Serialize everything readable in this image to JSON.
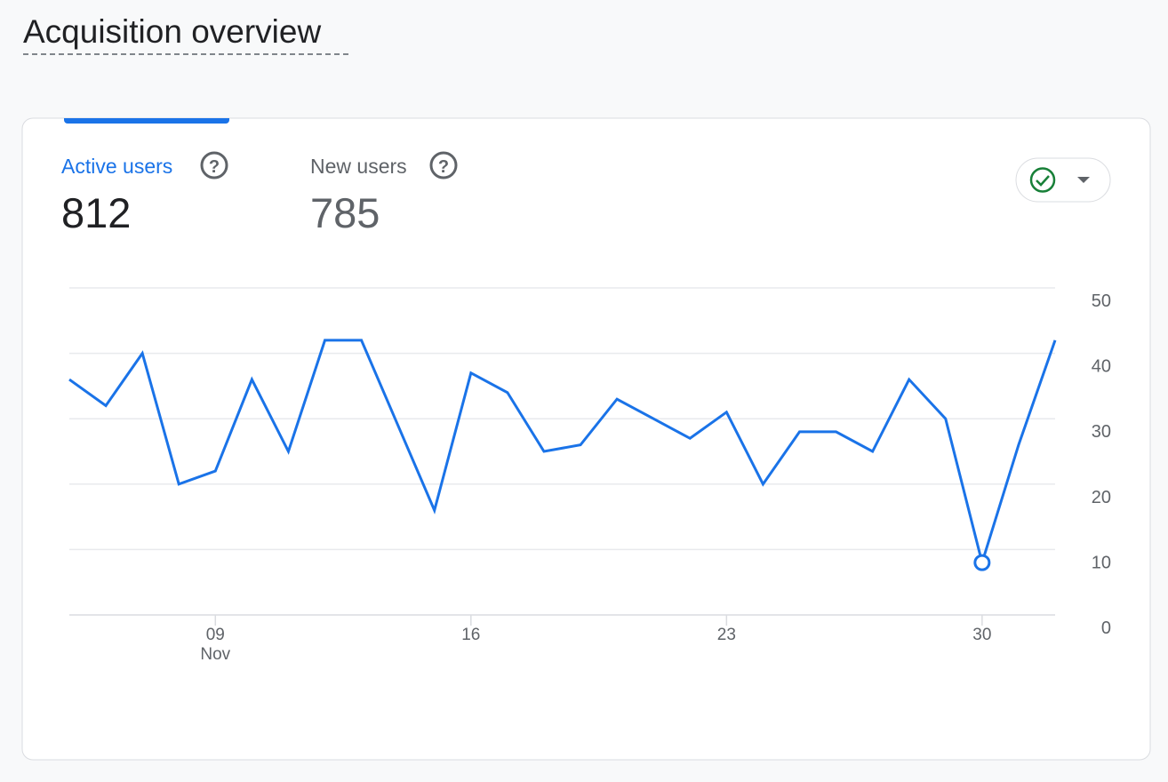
{
  "header": {
    "title": "Acquisition overview"
  },
  "metrics": [
    {
      "label": "Active users",
      "value": 812
    },
    {
      "label": "New users",
      "value": 785
    }
  ],
  "chart_data": {
    "type": "line",
    "x": [
      "11-05",
      "11-06",
      "11-07",
      "11-08",
      "11-09",
      "11-10",
      "11-11",
      "11-12",
      "11-13",
      "11-14",
      "11-15",
      "11-16",
      "11-17",
      "11-18",
      "11-19",
      "11-20",
      "11-21",
      "11-22",
      "11-23",
      "11-24",
      "11-25",
      "11-26",
      "11-27",
      "11-28",
      "11-29",
      "11-30",
      "12-01",
      "12-02"
    ],
    "series": [
      {
        "name": "Active users",
        "color": "#1a73e8",
        "values": [
          36,
          32,
          40,
          20,
          22,
          36,
          25,
          42,
          42,
          29,
          16,
          37,
          34,
          25,
          26,
          33,
          30,
          27,
          31,
          20,
          28,
          28,
          25,
          36,
          30,
          8,
          26,
          42
        ]
      }
    ],
    "marker": "11-30",
    "xticks": [
      {
        "value": "11-09",
        "label": "09",
        "sublabel": "Nov"
      },
      {
        "value": "11-16",
        "label": "16"
      },
      {
        "value": "11-23",
        "label": "23"
      },
      {
        "value": "11-30",
        "label": "30"
      }
    ],
    "ylim": [
      0,
      50
    ],
    "yticks": [
      0,
      10,
      20,
      30,
      40,
      50
    ],
    "grid": true
  }
}
